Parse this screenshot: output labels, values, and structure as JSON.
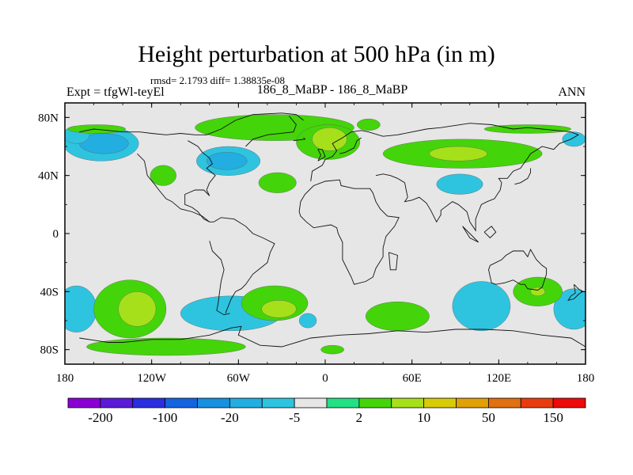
{
  "chart_data": {
    "type": "heatmap",
    "title": "Height perturbation at 500 hPa (in m)",
    "subtitle": "rmsd= 2.1793 diff= 1.38835e-08",
    "left_label": "Expt = tfgWl-teyEl",
    "center_label": "186_8_MaBP - 186_8_MaBP",
    "right_label": "ANN",
    "x_range": [
      -180,
      180
    ],
    "y_range": [
      -90,
      90
    ],
    "x_ticks": [
      {
        "value": -180,
        "label": "180"
      },
      {
        "value": -120,
        "label": "120W"
      },
      {
        "value": -60,
        "label": "60W"
      },
      {
        "value": 0,
        "label": "0"
      },
      {
        "value": 60,
        "label": "60E"
      },
      {
        "value": 120,
        "label": "120E"
      },
      {
        "value": 180,
        "label": "180"
      }
    ],
    "y_ticks": [
      {
        "value": 80,
        "label": "80N"
      },
      {
        "value": 40,
        "label": "40N"
      },
      {
        "value": 0,
        "label": "0"
      },
      {
        "value": -40,
        "label": "40S"
      },
      {
        "value": -80,
        "label": "80S"
      }
    ],
    "levels": [
      -200,
      -150,
      -100,
      -50,
      -20,
      -10,
      -5,
      -2,
      2,
      5,
      10,
      20,
      50,
      100,
      150,
      200
    ],
    "colorbar_labels": [
      {
        "value": -200,
        "label": "-200"
      },
      {
        "value": -100,
        "label": "-100"
      },
      {
        "value": -20,
        "label": "-20"
      },
      {
        "value": -5,
        "label": "-5"
      },
      {
        "value": 2,
        "label": "2"
      },
      {
        "value": 10,
        "label": "10"
      },
      {
        "value": 50,
        "label": "50"
      },
      {
        "value": 150,
        "label": "150"
      }
    ],
    "colors": [
      "#8a00d4",
      "#5a1ad8",
      "#2a2ee0",
      "#1464e0",
      "#1890e0",
      "#22aee0",
      "#2ec4e0",
      "#e6e6e6",
      "#22e084",
      "#44d40a",
      "#a6e01a",
      "#d8cc08",
      "#e0a008",
      "#e07010",
      "#e83c10",
      "#ec0a0a"
    ],
    "background_color": "#e6e6e6",
    "blobs": [
      {
        "lon": -155,
        "lat": 62,
        "rlon": 26,
        "rlat": 12,
        "value": -5
      },
      {
        "lon": -153,
        "lat": 62,
        "rlon": 17,
        "rlat": 7,
        "value": -10
      },
      {
        "lon": -172,
        "lat": 68,
        "rlon": 9,
        "rlat": 6,
        "value": -5
      },
      {
        "lon": -67,
        "lat": 50,
        "rlon": 22,
        "rlat": 10,
        "value": -5
      },
      {
        "lon": -68,
        "lat": 50,
        "rlon": 14,
        "rlat": 6,
        "value": -10
      },
      {
        "lon": 93,
        "lat": 34,
        "rlon": 16,
        "rlat": 7,
        "value": -5
      },
      {
        "lon": 172,
        "lat": 65,
        "rlon": 8,
        "rlat": 5,
        "value": -5
      },
      {
        "lon": -35,
        "lat": 73,
        "rlon": 55,
        "rlat": 9,
        "value": 5
      },
      {
        "lon": 2,
        "lat": 63,
        "rlon": 22,
        "rlat": 12,
        "value": 5
      },
      {
        "lon": 3,
        "lat": 65,
        "rlon": 12,
        "rlat": 8,
        "value": 10
      },
      {
        "lon": 95,
        "lat": 55,
        "rlon": 55,
        "rlat": 10,
        "value": 5
      },
      {
        "lon": 92,
        "lat": 55,
        "rlon": 20,
        "rlat": 5,
        "value": 10
      },
      {
        "lon": 30,
        "lat": 75,
        "rlon": 8,
        "rlat": 4,
        "value": 5
      },
      {
        "lon": 140,
        "lat": 72,
        "rlon": 30,
        "rlat": 3,
        "value": 5
      },
      {
        "lon": -158,
        "lat": 72,
        "rlon": 20,
        "rlat": 3,
        "value": 5
      },
      {
        "lon": -112,
        "lat": 40,
        "rlon": 9,
        "rlat": 7,
        "value": 5
      },
      {
        "lon": -33,
        "lat": 35,
        "rlon": 13,
        "rlat": 7,
        "value": 5
      },
      {
        "lon": -172,
        "lat": -52,
        "rlon": 14,
        "rlat": 16,
        "value": -5
      },
      {
        "lon": -65,
        "lat": -55,
        "rlon": 35,
        "rlat": 12,
        "value": -5
      },
      {
        "lon": 108,
        "lat": -50,
        "rlon": 20,
        "rlat": 17,
        "value": -5
      },
      {
        "lon": 172,
        "lat": -52,
        "rlon": 14,
        "rlat": 14,
        "value": -5
      },
      {
        "lon": -135,
        "lat": -52,
        "rlon": 25,
        "rlat": 20,
        "value": 5
      },
      {
        "lon": -130,
        "lat": -52,
        "rlon": 13,
        "rlat": 12,
        "value": 10
      },
      {
        "lon": -110,
        "lat": -78,
        "rlon": 55,
        "rlat": 6,
        "value": 5
      },
      {
        "lon": -35,
        "lat": -48,
        "rlon": 23,
        "rlat": 12,
        "value": 5
      },
      {
        "lon": -32,
        "lat": -52,
        "rlon": 12,
        "rlat": 6,
        "value": 10
      },
      {
        "lon": 50,
        "lat": -57,
        "rlon": 22,
        "rlat": 10,
        "value": 5
      },
      {
        "lon": 147,
        "lat": -40,
        "rlon": 17,
        "rlat": 10,
        "value": 5
      },
      {
        "lon": 147,
        "lat": -40,
        "rlon": 5,
        "rlat": 3,
        "value": 10
      },
      {
        "lon": 5,
        "lat": -80,
        "rlon": 8,
        "rlat": 3,
        "value": 5
      },
      {
        "lon": -12,
        "lat": -60,
        "rlon": 6,
        "rlat": 5,
        "value": -5
      }
    ],
    "coastlines": [
      [
        [
          -170,
          70
        ],
        [
          -160,
          72
        ],
        [
          -150,
          71
        ],
        [
          -140,
          70
        ],
        [
          -128,
          70
        ],
        [
          -120,
          69
        ],
        [
          -110,
          68
        ],
        [
          -100,
          69
        ],
        [
          -90,
          68
        ],
        [
          -82,
          68
        ],
        [
          -72,
          72
        ],
        [
          -62,
          78
        ],
        [
          -50,
          82
        ],
        [
          -30,
          83
        ],
        [
          -20,
          82
        ],
        [
          -15,
          78
        ]
      ],
      [
        [
          -95,
          64
        ],
        [
          -88,
          60
        ],
        [
          -85,
          56
        ],
        [
          -80,
          52
        ],
        [
          -78,
          48
        ],
        [
          -82,
          45
        ],
        [
          -76,
          40
        ],
        [
          -80,
          35
        ],
        [
          -82,
          30
        ],
        [
          -80,
          26
        ],
        [
          -84,
          30
        ],
        [
          -90,
          30
        ],
        [
          -97,
          27
        ],
        [
          -97,
          20
        ],
        [
          -92,
          18
        ],
        [
          -88,
          15
        ],
        [
          -84,
          10
        ],
        [
          -80,
          8
        ],
        [
          -77,
          8
        ]
      ],
      [
        [
          -130,
          55
        ],
        [
          -125,
          50
        ],
        [
          -124,
          45
        ],
        [
          -123,
          40
        ],
        [
          -118,
          34
        ],
        [
          -115,
          30
        ],
        [
          -110,
          24
        ],
        [
          -106,
          22
        ],
        [
          -100,
          17
        ],
        [
          -92,
          15
        ],
        [
          -85,
          12
        ],
        [
          -80,
          8
        ]
      ],
      [
        [
          -77,
          8
        ],
        [
          -72,
          11
        ],
        [
          -63,
          10
        ],
        [
          -55,
          5
        ],
        [
          -50,
          0
        ],
        [
          -43,
          -3
        ],
        [
          -35,
          -7
        ],
        [
          -38,
          -13
        ],
        [
          -40,
          -20
        ],
        [
          -45,
          -24
        ],
        [
          -50,
          -28
        ],
        [
          -55,
          -35
        ],
        [
          -58,
          -38
        ],
        [
          -62,
          -40
        ],
        [
          -65,
          -45
        ],
        [
          -67,
          -50
        ],
        [
          -69,
          -55
        ]
      ],
      [
        [
          -80,
          -5
        ],
        [
          -78,
          -12
        ],
        [
          -72,
          -18
        ],
        [
          -70,
          -25
        ],
        [
          -72,
          -33
        ],
        [
          -73,
          -40
        ],
        [
          -74,
          -48
        ],
        [
          -75,
          -53
        ],
        [
          -70,
          -56
        ],
        [
          -66,
          -55
        ]
      ],
      [
        [
          -10,
          36
        ],
        [
          -9,
          43
        ],
        [
          -2,
          47
        ],
        [
          0,
          51
        ],
        [
          5,
          53
        ],
        [
          8,
          57
        ],
        [
          5,
          62
        ],
        [
          12,
          66
        ],
        [
          18,
          70
        ],
        [
          25,
          71
        ],
        [
          30,
          70
        ],
        [
          40,
          67
        ],
        [
          50,
          68
        ]
      ],
      [
        [
          10,
          55
        ],
        [
          14,
          56
        ],
        [
          20,
          59
        ],
        [
          22,
          64
        ],
        [
          25,
          66
        ]
      ],
      [
        [
          -18,
          15
        ],
        [
          -17,
          22
        ],
        [
          -14,
          27
        ],
        [
          -8,
          33
        ],
        [
          0,
          36
        ],
        [
          10,
          37
        ],
        [
          11,
          33
        ],
        [
          20,
          31
        ],
        [
          31,
          31
        ],
        [
          33,
          28
        ],
        [
          35,
          22
        ],
        [
          38,
          17
        ],
        [
          43,
          12
        ],
        [
          51,
          11
        ],
        [
          48,
          5
        ],
        [
          42,
          -2
        ],
        [
          40,
          -10
        ],
        [
          40,
          -16
        ],
        [
          35,
          -24
        ],
        [
          33,
          -30
        ],
        [
          28,
          -33
        ],
        [
          20,
          -35
        ],
        [
          18,
          -30
        ],
        [
          12,
          -18
        ],
        [
          12,
          -6
        ],
        [
          9,
          0
        ],
        [
          8,
          4
        ],
        [
          4,
          6
        ],
        [
          -2,
          5
        ],
        [
          -8,
          4
        ],
        [
          -13,
          8
        ],
        [
          -17,
          12
        ],
        [
          -18,
          15
        ]
      ],
      [
        [
          35,
          40
        ],
        [
          40,
          41
        ],
        [
          45,
          40
        ],
        [
          50,
          38
        ],
        [
          55,
          35
        ],
        [
          57,
          25
        ],
        [
          55,
          22
        ],
        [
          60,
          23
        ],
        [
          65,
          25
        ],
        [
          70,
          21
        ],
        [
          73,
          16
        ],
        [
          77,
          8
        ],
        [
          80,
          13
        ],
        [
          80,
          16
        ],
        [
          88,
          22
        ],
        [
          92,
          20
        ],
        [
          98,
          15
        ],
        [
          100,
          8
        ],
        [
          104,
          2
        ],
        [
          104,
          10
        ],
        [
          106,
          15
        ],
        [
          108,
          20
        ],
        [
          112,
          22
        ],
        [
          117,
          24
        ],
        [
          121,
          30
        ],
        [
          122,
          35
        ],
        [
          120,
          38
        ],
        [
          126,
          38
        ],
        [
          130,
          43
        ],
        [
          135,
          45
        ],
        [
          140,
          52
        ],
        [
          142,
          55
        ],
        [
          150,
          60
        ],
        [
          158,
          58
        ],
        [
          162,
          62
        ],
        [
          170,
          65
        ],
        [
          175,
          68
        ],
        [
          170,
          70
        ],
        [
          160,
          71
        ],
        [
          150,
          72
        ],
        [
          140,
          73
        ],
        [
          130,
          72
        ],
        [
          115,
          75
        ],
        [
          100,
          76
        ],
        [
          80,
          73
        ],
        [
          70,
          72
        ],
        [
          60,
          70
        ],
        [
          50,
          68
        ]
      ],
      [
        [
          131,
          34
        ],
        [
          135,
          35
        ],
        [
          140,
          38
        ],
        [
          142,
          42
        ],
        [
          142,
          45
        ]
      ],
      [
        [
          114,
          -22
        ],
        [
          113,
          -25
        ],
        [
          115,
          -34
        ],
        [
          118,
          -35
        ],
        [
          124,
          -34
        ],
        [
          130,
          -32
        ],
        [
          135,
          -35
        ],
        [
          138,
          -35
        ],
        [
          140,
          -38
        ],
        [
          147,
          -39
        ],
        [
          150,
          -37
        ],
        [
          153,
          -28
        ],
        [
          153,
          -24
        ],
        [
          150,
          -22
        ],
        [
          146,
          -18
        ],
        [
          142,
          -11
        ],
        [
          140,
          -16
        ],
        [
          137,
          -12
        ],
        [
          130,
          -12
        ],
        [
          125,
          -15
        ],
        [
          122,
          -18
        ],
        [
          114,
          -22
        ]
      ],
      [
        [
          172,
          -35
        ],
        [
          175,
          -38
        ],
        [
          178,
          -40
        ],
        [
          175,
          -42
        ],
        [
          172,
          -45
        ],
        [
          168,
          -46
        ],
        [
          170,
          -43
        ],
        [
          173,
          -41
        ],
        [
          172,
          -35
        ]
      ],
      [
        [
          -170,
          -72
        ],
        [
          -150,
          -75
        ],
        [
          -140,
          -75
        ],
        [
          -120,
          -73
        ],
        [
          -100,
          -73
        ],
        [
          -80,
          -70
        ],
        [
          -65,
          -65
        ],
        [
          -58,
          -64
        ],
        [
          -60,
          -70
        ],
        [
          -45,
          -77
        ],
        [
          -30,
          -78
        ],
        [
          -10,
          -72
        ],
        [
          10,
          -70
        ],
        [
          30,
          -69
        ],
        [
          50,
          -67
        ],
        [
          70,
          -68
        ],
        [
          90,
          -66
        ],
        [
          110,
          -66
        ],
        [
          130,
          -67
        ],
        [
          150,
          -70
        ],
        [
          170,
          -72
        ],
        [
          180,
          -78
        ]
      ],
      [
        [
          -55,
          60
        ],
        [
          -50,
          65
        ],
        [
          -40,
          68
        ],
        [
          -22,
          70
        ],
        [
          -20,
          75
        ],
        [
          -25,
          81
        ]
      ],
      [
        [
          -22,
          64
        ],
        [
          -14,
          65
        ],
        [
          -15,
          66
        ]
      ],
      [
        [
          -5,
          50
        ],
        [
          -3,
          54
        ],
        [
          -5,
          58
        ],
        [
          -2,
          58
        ],
        [
          0,
          53
        ],
        [
          -5,
          50
        ]
      ],
      [
        [
          44,
          -13
        ],
        [
          50,
          -15
        ],
        [
          49,
          -25
        ],
        [
          45,
          -25
        ],
        [
          44,
          -13
        ]
      ],
      [
        [
          95,
          5
        ],
        [
          100,
          0
        ],
        [
          106,
          -6
        ],
        [
          100,
          -3
        ],
        [
          95,
          5
        ]
      ],
      [
        [
          110,
          1
        ],
        [
          115,
          5
        ],
        [
          118,
          1
        ],
        [
          114,
          -3
        ],
        [
          110,
          1
        ]
      ]
    ]
  }
}
